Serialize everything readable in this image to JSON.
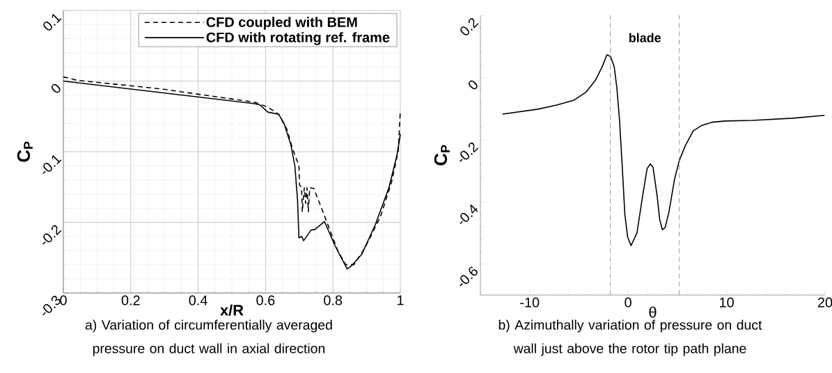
{
  "chart_data": [
    {
      "type": "line",
      "xlabel": "x/R",
      "ylabel": "C$_{P}$",
      "xlim": [
        0,
        1
      ],
      "ylim": [
        -0.3,
        0.1
      ],
      "xticks": [
        0,
        0.2,
        0.4,
        0.6,
        0.8,
        1
      ],
      "yticks": [
        -0.3,
        -0.2,
        -0.1,
        0,
        0.1
      ],
      "grid": true,
      "legend": "top right",
      "series": [
        {
          "name": "CFD coupled with BEM",
          "color": "#000000",
          "line_style": "dashed",
          "x": [
            0,
            0.042,
            0.289,
            0.568,
            0.607,
            0.639,
            0.663,
            0.679,
            0.699,
            0.701,
            0.707,
            0.709,
            0.715,
            0.719,
            0.723,
            0.727,
            0.731,
            0.743,
            0.767,
            0.791,
            0.815,
            0.838,
            0.862,
            0.894,
            0.941,
            0.974,
            0.994,
            1.0
          ],
          "values": [
            0.006,
            0.001,
            -0.011,
            -0.03,
            -0.037,
            -0.047,
            -0.068,
            -0.094,
            -0.12,
            -0.147,
            -0.151,
            -0.185,
            -0.151,
            -0.173,
            -0.151,
            -0.185,
            -0.151,
            -0.152,
            -0.181,
            -0.211,
            -0.241,
            -0.26,
            -0.26,
            -0.237,
            -0.192,
            -0.143,
            -0.098,
            -0.041
          ]
        },
        {
          "name": "CFD with rotating ref. frame",
          "color": "#000000",
          "line_style": "solid",
          "x": [
            0,
            0.568,
            0.584,
            0.607,
            0.639,
            0.655,
            0.675,
            0.687,
            0.695,
            0.699,
            0.707,
            0.713,
            0.735,
            0.747,
            0.775,
            0.807,
            0.842,
            0.854,
            0.886,
            0.926,
            0.966,
            0.99,
            1.0
          ],
          "values": [
            0,
            -0.032,
            -0.034,
            -0.044,
            -0.047,
            -0.06,
            -0.09,
            -0.12,
            -0.169,
            -0.222,
            -0.22,
            -0.226,
            -0.211,
            -0.21,
            -0.199,
            -0.234,
            -0.266,
            -0.262,
            -0.245,
            -0.203,
            -0.151,
            -0.105,
            -0.075
          ]
        }
      ],
      "annotations": [
        "a) Variation of circumferentially averaged pressure on duct wall in axial direction"
      ]
    },
    {
      "type": "line",
      "xlabel": "θ",
      "ylabel": "C$_{P}$",
      "xlim": [
        -15,
        20
      ],
      "ylim": [
        -0.7,
        0.2
      ],
      "xticks": [
        -10,
        0,
        10,
        20
      ],
      "yticks": [
        -0.6,
        -0.4,
        -0.2,
        0,
        0.2
      ],
      "color": "#000000",
      "x": [
        -12.76,
        -9.17,
        -7.27,
        -5.5,
        -4.27,
        -3.32,
        -2.64,
        -2.15,
        -1.77,
        -1.41,
        -1.14,
        -0.87,
        -0.6,
        -0.33,
        -0.05,
        0.3,
        0.9,
        1.44,
        1.93,
        2.26,
        2.53,
        2.94,
        3.21,
        3.48,
        3.76,
        4.16,
        4.71,
        5.2,
        5.8,
        6.61,
        7.43,
        8.52,
        9.88,
        12.6,
        16.7,
        19.95
      ],
      "values": [
        -0.118,
        -0.102,
        -0.089,
        -0.073,
        -0.047,
        -0.009,
        0.034,
        0.073,
        0.067,
        0.034,
        -0.034,
        -0.138,
        -0.284,
        -0.44,
        -0.513,
        -0.541,
        -0.5,
        -0.388,
        -0.293,
        -0.278,
        -0.289,
        -0.379,
        -0.457,
        -0.49,
        -0.483,
        -0.431,
        -0.328,
        -0.267,
        -0.22,
        -0.172,
        -0.155,
        -0.144,
        -0.14,
        -0.138,
        -0.131,
        -0.122
      ],
      "ref_lines": [
        {
          "axis": "x",
          "value": -1.8,
          "color": "#808080",
          "line_style": "dashed"
        },
        {
          "axis": "x",
          "value": 5.2,
          "color": "#808080",
          "line_style": "dashed"
        }
      ],
      "annotations": [
        "blade",
        "b) Azimuthally variation of pressure on duct wall just above the rotor tip path plane"
      ]
    }
  ]
}
